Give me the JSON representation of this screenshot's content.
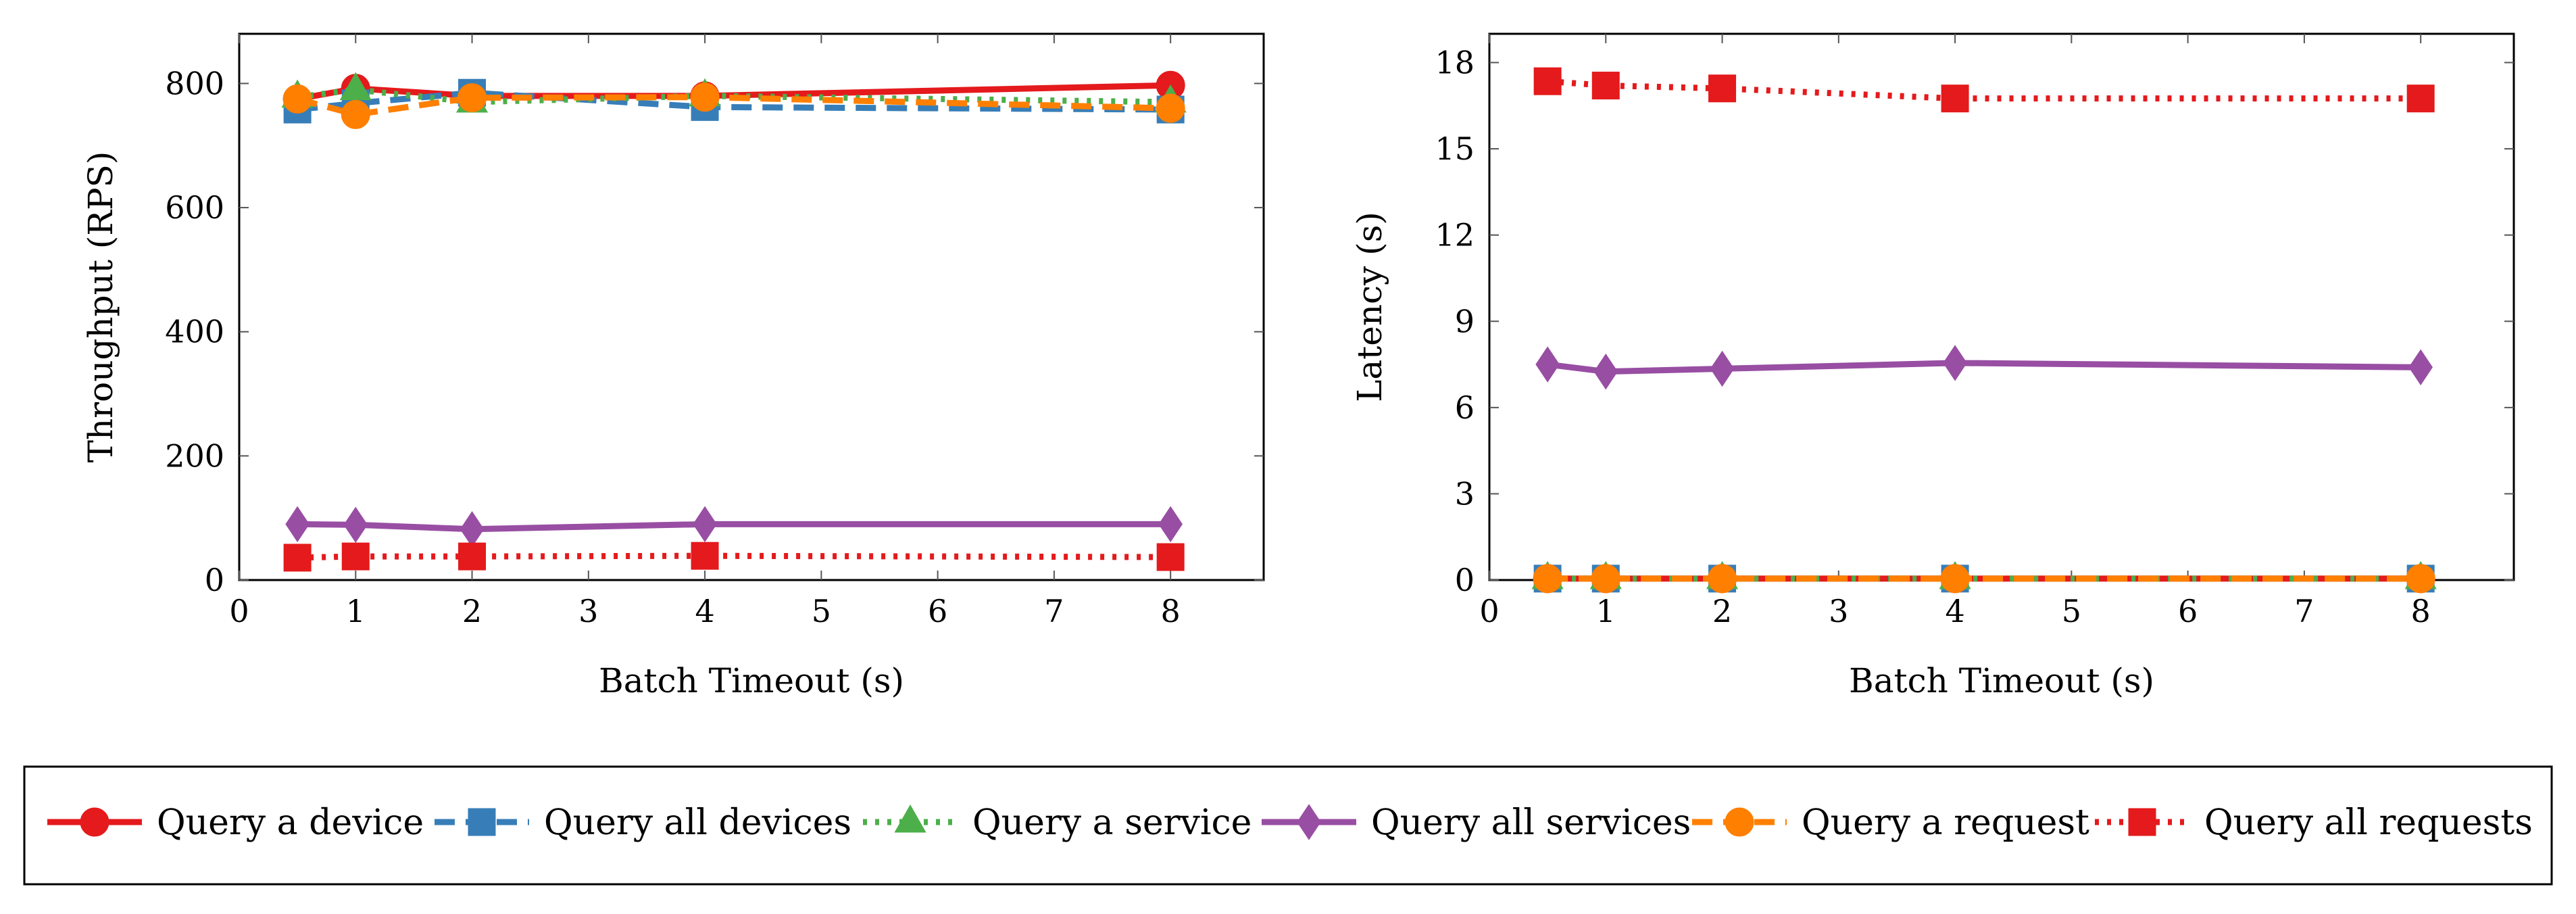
{
  "colors": {
    "red": "#e41a1c",
    "blue": "#377eb8",
    "green": "#4daf4a",
    "purple": "#984ea3",
    "orange": "#ff7f00"
  },
  "series_meta": [
    {
      "name": "Query a device",
      "color": "#e41a1c",
      "marker": "circle",
      "dash": "solid"
    },
    {
      "name": "Query all devices",
      "color": "#377eb8",
      "marker": "square",
      "dash": "dashed"
    },
    {
      "name": "Query a service",
      "color": "#4daf4a",
      "marker": "triangle",
      "dash": "dotted"
    },
    {
      "name": "Query all services",
      "color": "#984ea3",
      "marker": "diamond",
      "dash": "solid"
    },
    {
      "name": "Query a request",
      "color": "#ff7f00",
      "marker": "circle",
      "dash": "dashed"
    },
    {
      "name": "Query all requests",
      "color": "#e41a1c",
      "marker": "square",
      "dash": "dotted"
    }
  ],
  "chart_data": [
    {
      "type": "line",
      "xlabel": "Batch Timeout (s)",
      "ylabel": "Throughput (RPS)",
      "xlim": [
        0,
        8.8
      ],
      "ylim": [
        0,
        880
      ],
      "xticks": [
        0,
        1,
        2,
        3,
        4,
        5,
        6,
        7,
        8
      ],
      "yticks": [
        0,
        200,
        400,
        600,
        800
      ],
      "x": [
        0.5,
        1,
        2,
        4,
        8
      ],
      "series": [
        {
          "name": "Query a device",
          "values": [
            775,
            792,
            780,
            780,
            797
          ]
        },
        {
          "name": "Query all devices",
          "values": [
            758,
            768,
            785,
            762,
            758
          ]
        },
        {
          "name": "Query a service",
          "values": [
            778,
            790,
            770,
            780,
            770
          ]
        },
        {
          "name": "Query all services",
          "values": [
            90,
            89,
            82,
            90,
            90
          ]
        },
        {
          "name": "Query a request",
          "values": [
            775,
            750,
            777,
            778,
            760
          ]
        },
        {
          "name": "Query all requests",
          "values": [
            36,
            38,
            38,
            39,
            37
          ]
        }
      ]
    },
    {
      "type": "line",
      "xlabel": "Batch Timeout (s)",
      "ylabel": "Latency (s)",
      "xlim": [
        0,
        8.8
      ],
      "ylim": [
        0,
        19
      ],
      "xticks": [
        0,
        1,
        2,
        3,
        4,
        5,
        6,
        7,
        8
      ],
      "yticks": [
        0,
        3,
        6,
        9,
        12,
        15,
        18
      ],
      "x": [
        0.5,
        1,
        2,
        4,
        8
      ],
      "series": [
        {
          "name": "Query a device",
          "values": [
            0.05,
            0.05,
            0.05,
            0.05,
            0.05
          ]
        },
        {
          "name": "Query all devices",
          "values": [
            0.05,
            0.05,
            0.05,
            0.05,
            0.05
          ]
        },
        {
          "name": "Query a service",
          "values": [
            0.05,
            0.05,
            0.05,
            0.05,
            0.05
          ]
        },
        {
          "name": "Query all services",
          "values": [
            7.5,
            7.25,
            7.35,
            7.55,
            7.4
          ]
        },
        {
          "name": "Query a request",
          "values": [
            0.05,
            0.05,
            0.05,
            0.05,
            0.05
          ]
        },
        {
          "name": "Query all requests",
          "values": [
            17.35,
            17.2,
            17.1,
            16.75,
            16.75
          ]
        }
      ]
    }
  ]
}
